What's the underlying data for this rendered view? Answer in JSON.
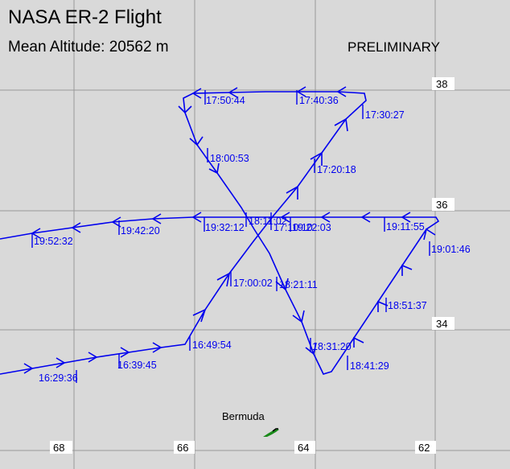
{
  "map": {
    "title": "NASA ER-2 Flight",
    "subtitle": "Mean Altitude: 20562  m",
    "status": "PRELIMINARY",
    "colors": {
      "background": "#d9d9d9",
      "grid": "#999999",
      "track": "#0000ee",
      "land": "#1a8a1a"
    },
    "latitude_labels": [
      "38",
      "36",
      "34"
    ],
    "longitude_labels": [
      "68",
      "66",
      "64",
      "62"
    ],
    "places": [
      {
        "name": "Bermuda"
      }
    ],
    "time_labels": [
      "16:29:36",
      "16:39:45",
      "16:49:54",
      "17:00:02",
      "17:10:10",
      "17:20:18",
      "17:30:27",
      "17:40:36",
      "17:50:44",
      "18:00:53",
      "18:11:02",
      "18:21:11",
      "18:31:20",
      "18:41:29",
      "18:51:37",
      "19:01:46",
      "19:11:55",
      "19:22:03",
      "19:32:12",
      "19:42:20",
      "19:52:32"
    ]
  }
}
